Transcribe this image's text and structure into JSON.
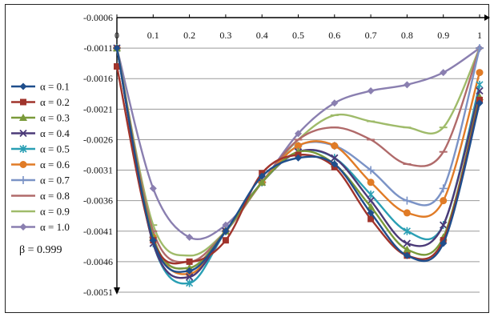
{
  "chart_data": {
    "type": "line",
    "title": "",
    "xlabel": "",
    "ylabel": "",
    "x": [
      0,
      0.1,
      0.2,
      0.3,
      0.4,
      0.5,
      0.6,
      0.7,
      0.8,
      0.9,
      1
    ],
    "x_tick_labels": [
      "0",
      "0.1",
      "0.2",
      "0.3",
      "0.4",
      "0.5",
      "0.6",
      "0.7",
      "0.8",
      "0.9",
      "1"
    ],
    "y_tick_labels": [
      "-0.0006",
      "-0.0011",
      "-0.0016",
      "-0.0021",
      "-0.0026",
      "-0.0031",
      "-0.0036",
      "-0.0041",
      "-0.0046",
      "-0.0051"
    ],
    "xlim": [
      0,
      1
    ],
    "ylim": [
      -0.0051,
      -0.0006
    ],
    "grid": "horizontal",
    "legend_position": "left",
    "annotation": "β = 0.999",
    "series": [
      {
        "name": "α = 0.1",
        "color": "#1f4e8c",
        "marker": "diamond",
        "values": [
          -0.0011,
          -0.00425,
          -0.00475,
          -0.0041,
          -0.0032,
          -0.0029,
          -0.003,
          -0.0038,
          -0.0045,
          -0.0043,
          -0.002
        ]
      },
      {
        "name": "α = 0.2",
        "color": "#a0342c",
        "marker": "square",
        "values": [
          -0.0014,
          -0.00425,
          -0.0046,
          -0.00425,
          -0.00315,
          -0.00285,
          -0.00305,
          -0.0039,
          -0.0045,
          -0.00425,
          -0.00195
        ]
      },
      {
        "name": "α = 0.3",
        "color": "#7a9a3a",
        "marker": "triangle",
        "values": [
          -0.0011,
          -0.0042,
          -0.0047,
          -0.0041,
          -0.0033,
          -0.0028,
          -0.003,
          -0.0037,
          -0.0044,
          -0.0042,
          -0.0019
        ]
      },
      {
        "name": "α = 0.4",
        "color": "#4b3a78",
        "marker": "x",
        "values": [
          -0.0011,
          -0.0043,
          -0.00485,
          -0.0041,
          -0.0033,
          -0.0028,
          -0.0029,
          -0.0036,
          -0.0043,
          -0.004,
          -0.0018
        ]
      },
      {
        "name": "α = 0.5",
        "color": "#2a9fb4",
        "marker": "asterisk",
        "values": [
          -0.0011,
          -0.0043,
          -0.00495,
          -0.0041,
          -0.0033,
          -0.0028,
          -0.0029,
          -0.0035,
          -0.0041,
          -0.004,
          -0.0017
        ]
      },
      {
        "name": "α = 0.6",
        "color": "#e07b26",
        "marker": "circle",
        "values": [
          -0.0011,
          -0.0042,
          -0.0048,
          -0.0041,
          -0.0033,
          -0.0027,
          -0.0027,
          -0.0033,
          -0.0038,
          -0.0036,
          -0.0015
        ]
      },
      {
        "name": "α = 0.7",
        "color": "#7b93c6",
        "marker": "plus",
        "values": [
          -0.0011,
          -0.0042,
          -0.0047,
          -0.0041,
          -0.0033,
          -0.0027,
          -0.0027,
          -0.0031,
          -0.0036,
          -0.0034,
          -0.0011
        ]
      },
      {
        "name": "α = 0.8",
        "color": "#b06a6a",
        "marker": "dash",
        "values": [
          -0.0011,
          -0.0041,
          -0.0046,
          -0.0041,
          -0.0033,
          -0.0026,
          -0.0024,
          -0.0026,
          -0.003,
          -0.0028,
          -0.0011
        ]
      },
      {
        "name": "α = 0.9",
        "color": "#9fbb6a",
        "marker": "dash",
        "values": [
          -0.0011,
          -0.004,
          -0.0045,
          -0.0041,
          -0.0033,
          -0.0026,
          -0.0022,
          -0.0023,
          -0.0024,
          -0.0024,
          -0.0011
        ]
      },
      {
        "name": "α = 1.0",
        "color": "#8a7fb0",
        "marker": "diamond",
        "values": [
          -0.0011,
          -0.0034,
          -0.0042,
          -0.004,
          -0.0033,
          -0.0025,
          -0.002,
          -0.0018,
          -0.0017,
          -0.0015,
          -0.0011
        ]
      }
    ]
  }
}
